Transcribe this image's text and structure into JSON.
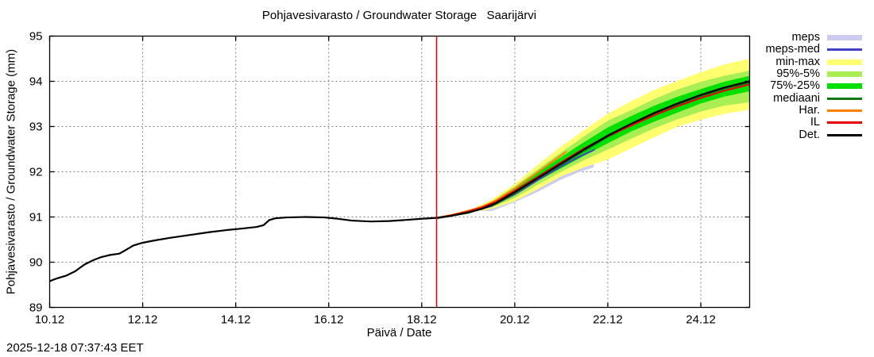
{
  "timestamp": "2025-12-18 07:37:43 EET",
  "chart_data": {
    "type": "line",
    "title": "Pohjavesivarasto / Groundwater Storage   Saarijärvi",
    "xlabel": "Päivä / Date",
    "ylabel": "Pohjavesivarasto / Groundwater Storage (mm)",
    "xlim": [
      10,
      25.05
    ],
    "ylim": [
      89,
      95
    ],
    "grid": true,
    "legend_position": "outside-top-right",
    "x_ticks": [
      {
        "v": 10,
        "label": "10.12"
      },
      {
        "v": 12,
        "label": "12.12"
      },
      {
        "v": 14,
        "label": "14.12"
      },
      {
        "v": 16,
        "label": "16.12"
      },
      {
        "v": 18,
        "label": "18.12"
      },
      {
        "v": 20,
        "label": "20.12"
      },
      {
        "v": 22,
        "label": "22.12"
      },
      {
        "v": 24,
        "label": "24.12"
      }
    ],
    "y_ticks": [
      {
        "v": 89,
        "label": "89"
      },
      {
        "v": 90,
        "label": "90"
      },
      {
        "v": 91,
        "label": "91"
      },
      {
        "v": 92,
        "label": "92"
      },
      {
        "v": 93,
        "label": "93"
      },
      {
        "v": 94,
        "label": "94"
      },
      {
        "v": 95,
        "label": "95"
      }
    ],
    "now_line": {
      "x": 18.32,
      "color": "#e60000"
    },
    "colors": {
      "meps": "#ccccf0",
      "meps_med": "#4040c8",
      "min_max": "#ffff70",
      "p95_5": "#aaee55",
      "p75_25": "#00e000",
      "mediaani": "#117711",
      "har": "#ff8000",
      "il": "#e60000",
      "det": "#000000",
      "grid": "#808080"
    },
    "legend": [
      {
        "label": "meps",
        "swatch": "band",
        "color": "#ccccf0"
      },
      {
        "label": "meps-med",
        "swatch": "line",
        "color": "#4040c8"
      },
      {
        "label": "min-max",
        "swatch": "band",
        "color": "#ffff70"
      },
      {
        "label": "95%-5%",
        "swatch": "band",
        "color": "#aaee55"
      },
      {
        "label": "75%-25%",
        "swatch": "band",
        "color": "#00e000"
      },
      {
        "label": "mediaani",
        "swatch": "line",
        "color": "#117711"
      },
      {
        "label": "Har.",
        "swatch": "line",
        "color": "#ff8000"
      },
      {
        "label": "IL",
        "swatch": "line",
        "color": "#e60000"
      },
      {
        "label": "Det.",
        "swatch": "line",
        "color": "#000000"
      }
    ],
    "bands": [
      {
        "name": "meps",
        "color": "#ccccf0",
        "points": [
          [
            19.2,
            91.14,
            91.22
          ],
          [
            19.5,
            91.13,
            91.36
          ],
          [
            20.0,
            91.33,
            91.73
          ],
          [
            20.5,
            91.56,
            92.13
          ],
          [
            21.0,
            91.83,
            92.5
          ],
          [
            21.4,
            92.0,
            92.73
          ],
          [
            21.7,
            92.1,
            92.88
          ]
        ]
      },
      {
        "name": "min-max",
        "color": "#ffff70",
        "points": [
          [
            19.05,
            91.1,
            91.16
          ],
          [
            19.5,
            91.18,
            91.38
          ],
          [
            20.0,
            91.35,
            91.73
          ],
          [
            20.5,
            91.62,
            92.16
          ],
          [
            21.0,
            91.9,
            92.56
          ],
          [
            21.5,
            92.1,
            92.93
          ],
          [
            22.0,
            92.27,
            93.28
          ],
          [
            22.5,
            92.52,
            93.56
          ],
          [
            23.0,
            92.76,
            93.81
          ],
          [
            23.5,
            93.0,
            94.01
          ],
          [
            24.0,
            93.15,
            94.2
          ],
          [
            24.5,
            93.28,
            94.37
          ],
          [
            25.05,
            93.37,
            94.5
          ]
        ]
      },
      {
        "name": "95%-5%",
        "color": "#aaee55",
        "points": [
          [
            19.05,
            91.11,
            91.15
          ],
          [
            19.5,
            91.21,
            91.34
          ],
          [
            20.0,
            91.42,
            91.68
          ],
          [
            20.5,
            91.72,
            92.06
          ],
          [
            21.0,
            92.0,
            92.43
          ],
          [
            21.5,
            92.26,
            92.79
          ],
          [
            22.0,
            92.49,
            93.13
          ],
          [
            22.5,
            92.73,
            93.36
          ],
          [
            23.0,
            92.96,
            93.61
          ],
          [
            23.5,
            93.16,
            93.82
          ],
          [
            24.0,
            93.33,
            93.99
          ],
          [
            24.5,
            93.46,
            94.12
          ],
          [
            25.05,
            93.54,
            94.24
          ]
        ]
      },
      {
        "name": "75%-25%",
        "color": "#00e000",
        "points": [
          [
            19.05,
            91.12,
            91.14
          ],
          [
            19.5,
            91.24,
            91.31
          ],
          [
            20.0,
            91.48,
            91.62
          ],
          [
            20.5,
            91.8,
            91.98
          ],
          [
            21.0,
            92.08,
            92.33
          ],
          [
            21.5,
            92.36,
            92.66
          ],
          [
            22.0,
            92.63,
            92.98
          ],
          [
            22.5,
            92.89,
            93.23
          ],
          [
            23.0,
            93.11,
            93.46
          ],
          [
            23.5,
            93.31,
            93.66
          ],
          [
            24.0,
            93.51,
            93.83
          ],
          [
            24.5,
            93.66,
            93.99
          ],
          [
            25.05,
            93.78,
            94.12
          ]
        ]
      }
    ],
    "series": [
      {
        "name": "meps-med",
        "color": "#4040c8",
        "width": 2,
        "points": [
          [
            18.32,
            90.98
          ],
          [
            19.0,
            91.1
          ],
          [
            19.5,
            91.24
          ],
          [
            20.0,
            91.5
          ],
          [
            20.5,
            91.82
          ],
          [
            21.0,
            92.12
          ],
          [
            21.4,
            92.34
          ],
          [
            21.7,
            92.48
          ]
        ]
      },
      {
        "name": "mediaani",
        "color": "#117711",
        "width": 2,
        "points": [
          [
            18.32,
            90.97
          ],
          [
            19.0,
            91.09
          ],
          [
            19.6,
            91.29
          ],
          [
            20.0,
            91.52
          ],
          [
            20.5,
            91.85
          ],
          [
            21.0,
            92.15
          ],
          [
            21.5,
            92.47
          ],
          [
            22.0,
            92.77
          ],
          [
            22.5,
            93.03
          ],
          [
            23.0,
            93.27
          ],
          [
            23.5,
            93.48
          ],
          [
            24.0,
            93.67
          ],
          [
            24.5,
            93.83
          ],
          [
            25.05,
            93.97
          ]
        ]
      },
      {
        "name": "Har.",
        "color": "#ff8000",
        "width": 2,
        "points": [
          [
            18.32,
            90.98
          ],
          [
            18.7,
            91.06
          ],
          [
            19.0,
            91.14
          ],
          [
            19.3,
            91.23
          ],
          [
            19.6,
            91.37
          ],
          [
            20.0,
            91.63
          ],
          [
            20.4,
            91.92
          ],
          [
            20.8,
            92.22
          ],
          [
            21.1,
            92.44
          ]
        ]
      },
      {
        "name": "IL",
        "color": "#e60000",
        "width": 2,
        "points": [
          [
            18.32,
            90.98
          ],
          [
            18.6,
            91.03
          ],
          [
            19.0,
            91.12
          ],
          [
            19.3,
            91.21
          ],
          [
            19.6,
            91.34
          ],
          [
            20.0,
            91.58
          ],
          [
            20.4,
            91.83
          ],
          [
            20.7,
            92.02
          ],
          [
            21.0,
            92.21
          ],
          [
            21.5,
            92.52
          ],
          [
            22.0,
            92.79
          ],
          [
            22.5,
            93.02
          ],
          [
            23.0,
            93.25
          ],
          [
            23.5,
            93.45
          ],
          [
            24.0,
            93.63
          ],
          [
            24.5,
            93.79
          ],
          [
            25.05,
            93.93
          ]
        ]
      },
      {
        "name": "observed",
        "color": "#000000",
        "width": 2.2,
        "points": [
          [
            10.0,
            89.58
          ],
          [
            10.15,
            89.64
          ],
          [
            10.35,
            89.7
          ],
          [
            10.55,
            89.8
          ],
          [
            10.75,
            89.95
          ],
          [
            10.95,
            90.05
          ],
          [
            11.1,
            90.11
          ],
          [
            11.3,
            90.16
          ],
          [
            11.5,
            90.19
          ],
          [
            11.62,
            90.26
          ],
          [
            11.8,
            90.37
          ],
          [
            12.0,
            90.43
          ],
          [
            12.25,
            90.48
          ],
          [
            12.6,
            90.54
          ],
          [
            13.0,
            90.6
          ],
          [
            13.4,
            90.66
          ],
          [
            13.8,
            90.71
          ],
          [
            14.1,
            90.74
          ],
          [
            14.45,
            90.78
          ],
          [
            14.6,
            90.82
          ],
          [
            14.72,
            90.93
          ],
          [
            14.85,
            90.97
          ],
          [
            15.1,
            90.99
          ],
          [
            15.5,
            91.0
          ],
          [
            15.9,
            90.99
          ],
          [
            16.2,
            90.96
          ],
          [
            16.5,
            90.92
          ],
          [
            16.9,
            90.9
          ],
          [
            17.3,
            90.91
          ],
          [
            17.6,
            90.93
          ],
          [
            18.0,
            90.96
          ],
          [
            18.32,
            90.98
          ]
        ]
      },
      {
        "name": "Det.",
        "color": "#000000",
        "width": 2.2,
        "points": [
          [
            18.32,
            90.98
          ],
          [
            18.6,
            91.02
          ],
          [
            19.0,
            91.1
          ],
          [
            19.3,
            91.18
          ],
          [
            19.6,
            91.31
          ],
          [
            20.0,
            91.55
          ],
          [
            20.4,
            91.8
          ],
          [
            20.7,
            91.99
          ],
          [
            21.0,
            92.18
          ],
          [
            21.5,
            92.5
          ],
          [
            22.0,
            92.8
          ],
          [
            22.5,
            93.06
          ],
          [
            23.0,
            93.3
          ],
          [
            23.5,
            93.51
          ],
          [
            24.0,
            93.7
          ],
          [
            24.5,
            93.86
          ],
          [
            25.05,
            94.0
          ]
        ]
      }
    ]
  }
}
